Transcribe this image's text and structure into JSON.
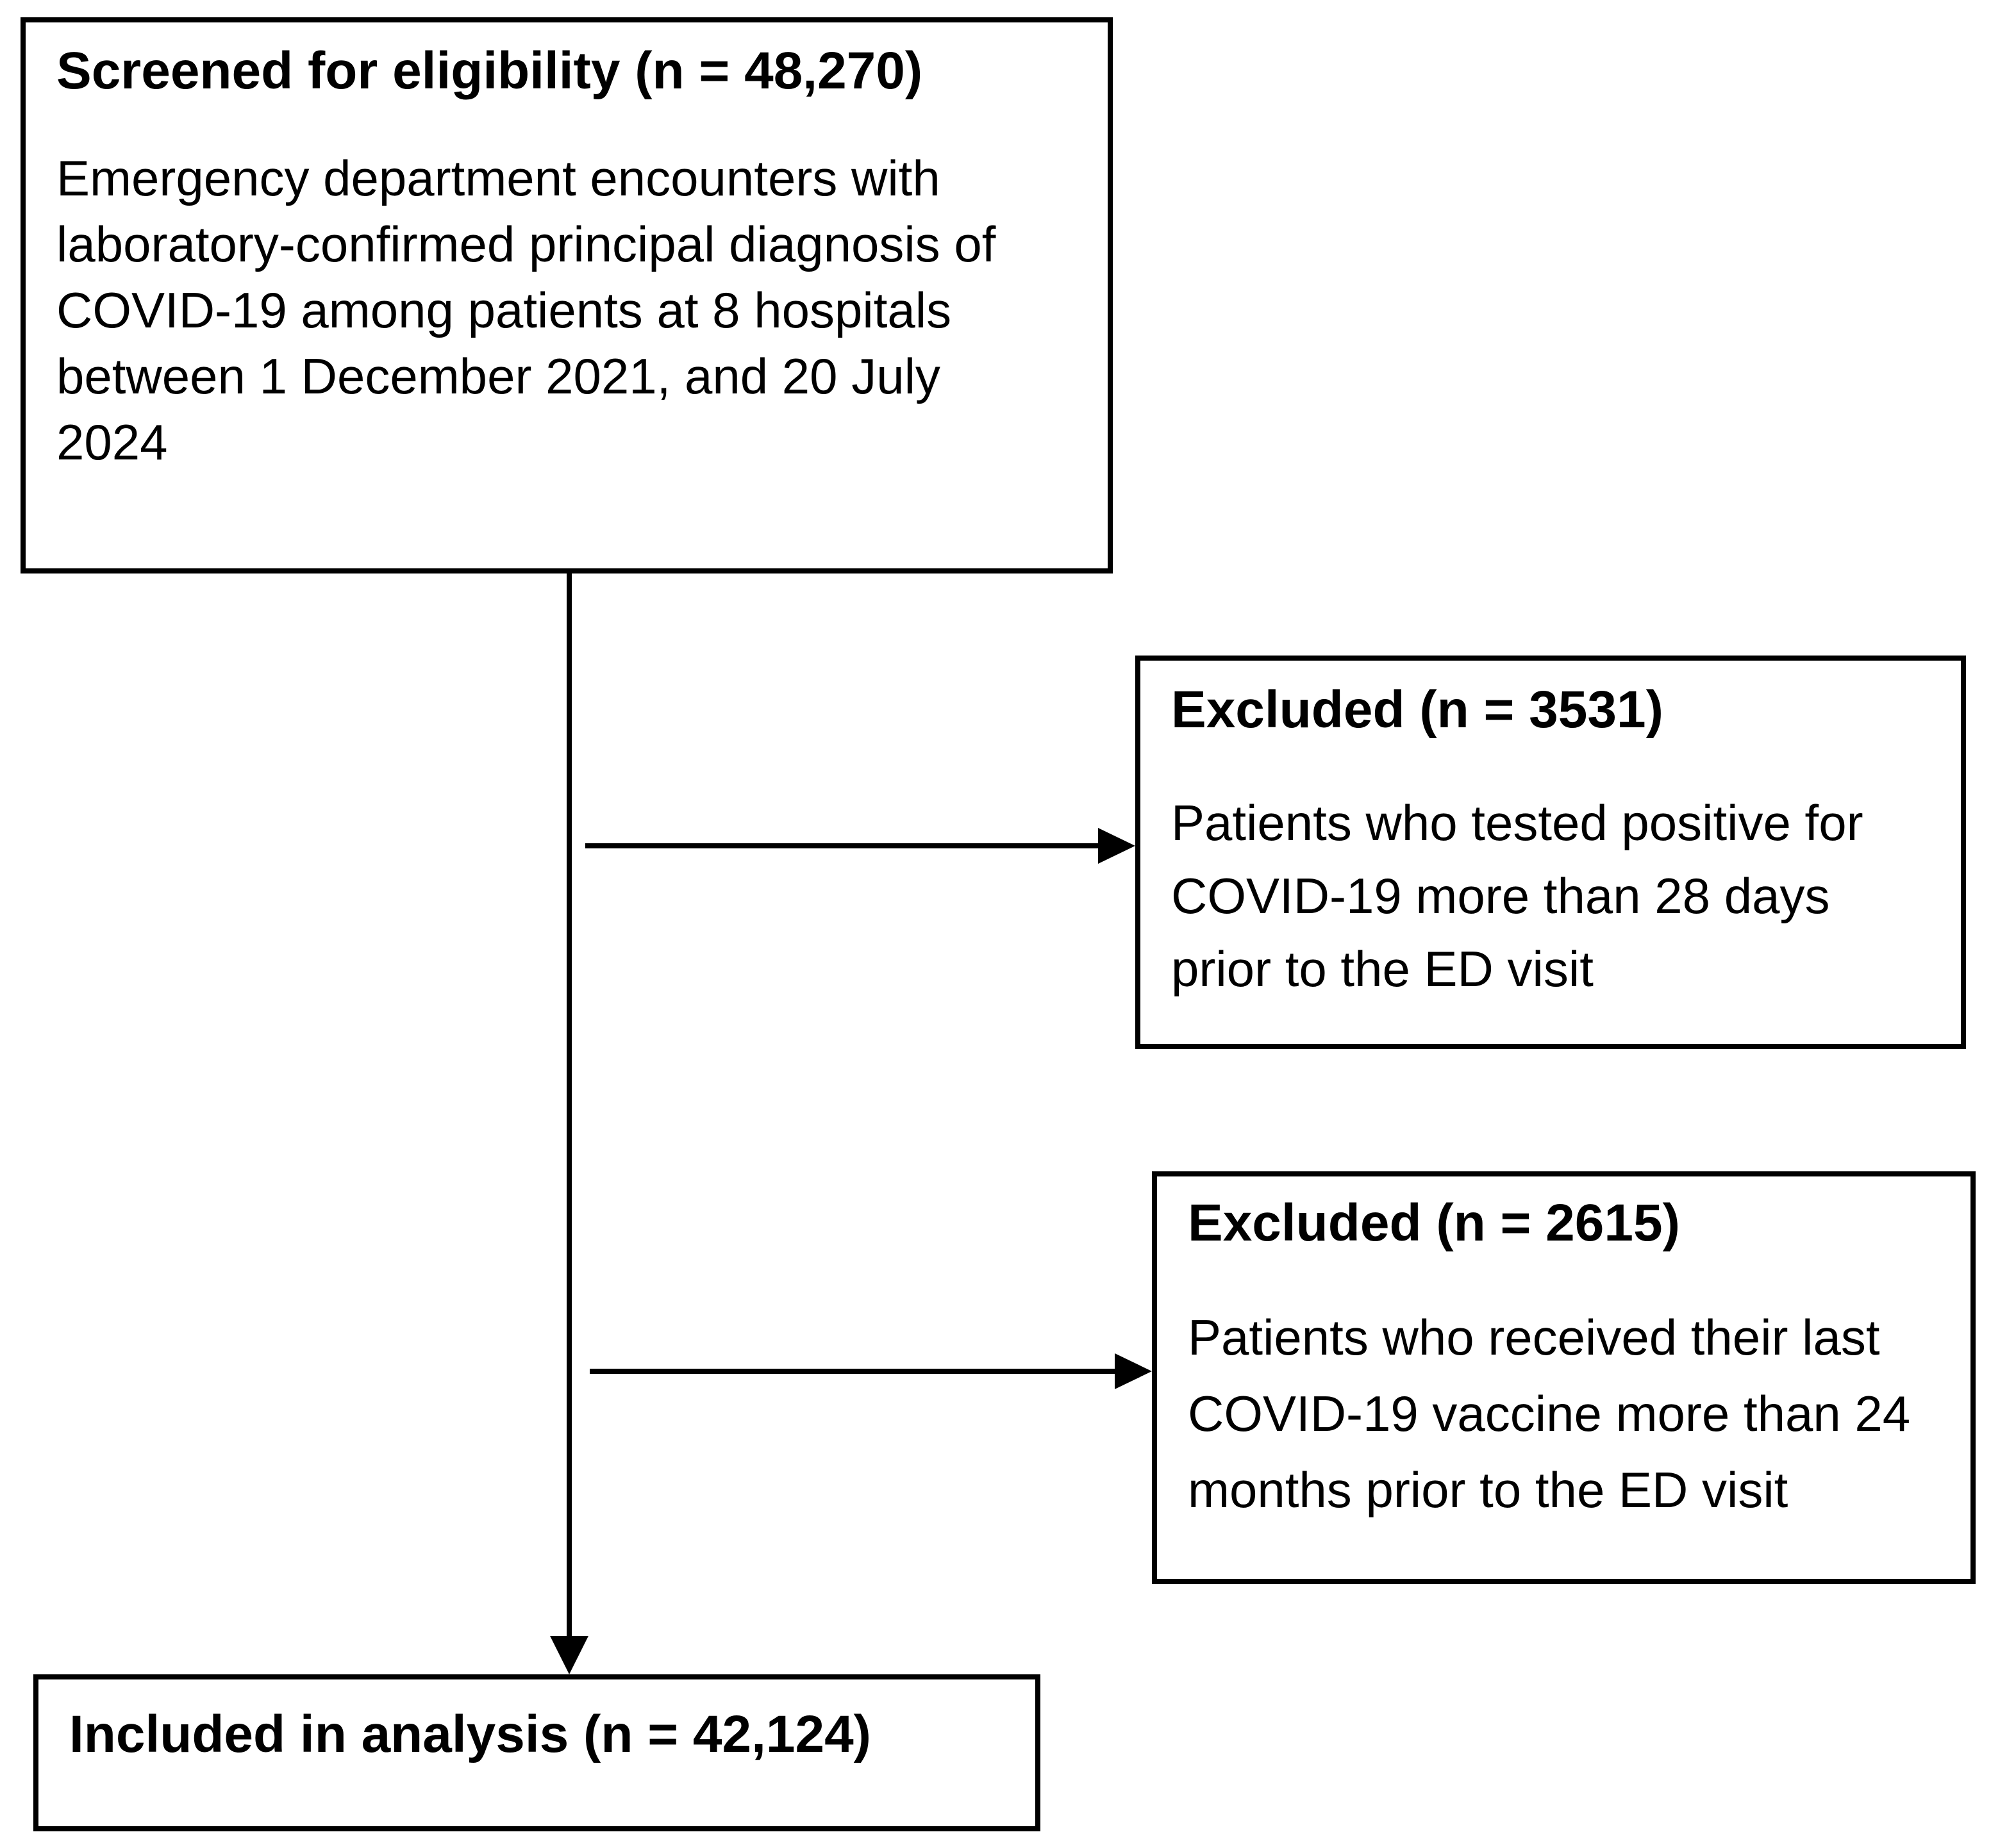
{
  "flowchart": {
    "top_box": {
      "title": "Screened for eligibility (n = 48,270)",
      "body_lines": [
        "Emergency department encounters with",
        "laboratory-confirmed principal diagnosis of",
        "COVID-19 among patients at 8 hospitals",
        "between 1 December 2021, and 20 July",
        "2024"
      ]
    },
    "excluded_box_1": {
      "title": "Excluded (n = 3531)",
      "body_lines": [
        "Patients who tested positive for",
        "COVID-19 more than 28 days",
        "prior to the ED visit"
      ]
    },
    "excluded_box_2": {
      "title": "Excluded (n = 2615)",
      "body_lines": [
        "Patients who received their last",
        "COVID-19 vaccine more than 24",
        "months prior to the ED visit"
      ]
    },
    "bottom_box": {
      "title": "Included in analysis (n = 42,124)"
    },
    "colors": {
      "border": "#000000",
      "background": "#ffffff",
      "text": "#000000"
    }
  }
}
